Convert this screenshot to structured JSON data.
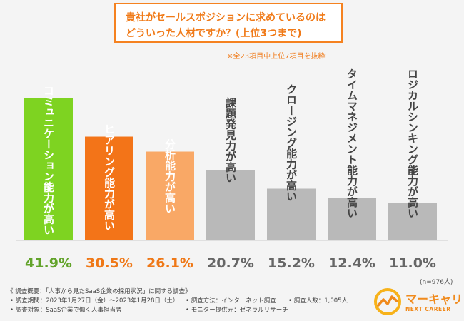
{
  "title": {
    "line1": "貴社がセールスポジションに求めているのは",
    "line2": "どういった人材ですか？(上位3つまで)"
  },
  "note": "※全23項目中上位7項目を抜粋",
  "sample_size": "(n=976人)",
  "colors": {
    "green": "#7ed321",
    "orange": "#f37418",
    "light_orange": "#f9a866",
    "gray": "#b9b9b9",
    "percent_green": "#62a32a",
    "percent_orange": "#ef7817",
    "percent_gray": "#666666"
  },
  "chart_data": {
    "type": "bar",
    "title": "貴社がセールスポジションに求めているのはどういった人材ですか？(上位3つまで)",
    "categories": [
      "コミュニケーション能力が高い",
      "ヒアリング能力が高い",
      "分析能力が高い",
      "課題発見力が高い",
      "クロージング能力が高い",
      "タイムマネジメント能力が高い",
      "ロジカルシンキング能力が高い"
    ],
    "values": [
      41.9,
      30.5,
      26.1,
      20.7,
      15.2,
      12.4,
      11.0
    ],
    "value_labels": [
      "41.9%",
      "30.5%",
      "26.1%",
      "20.7%",
      "15.2%",
      "12.4%",
      "11.0%"
    ],
    "color_keys": [
      "green",
      "orange",
      "light_orange",
      "gray",
      "gray",
      "gray",
      "gray"
    ],
    "unit": "%",
    "ylim": [
      0,
      50
    ],
    "xlabel": "",
    "ylabel": ""
  },
  "footer": {
    "overview": "《 調査概要：「人事から見たSaaS企業の採用状況」に関する調査》",
    "period": "• 調査期間：2023年1月27日（金）〜2023年1月28日（土）",
    "target": "• 調査対象：SaaS企業で働く人事担当者",
    "method": "• 調査方法：インターネット調査",
    "provider": "• モニター提供元：ゼネラルリサーチ",
    "count": "• 調査人数：1,005人"
  },
  "brand": {
    "name": "マーキャリ",
    "sub": "NEXT CAREER"
  }
}
